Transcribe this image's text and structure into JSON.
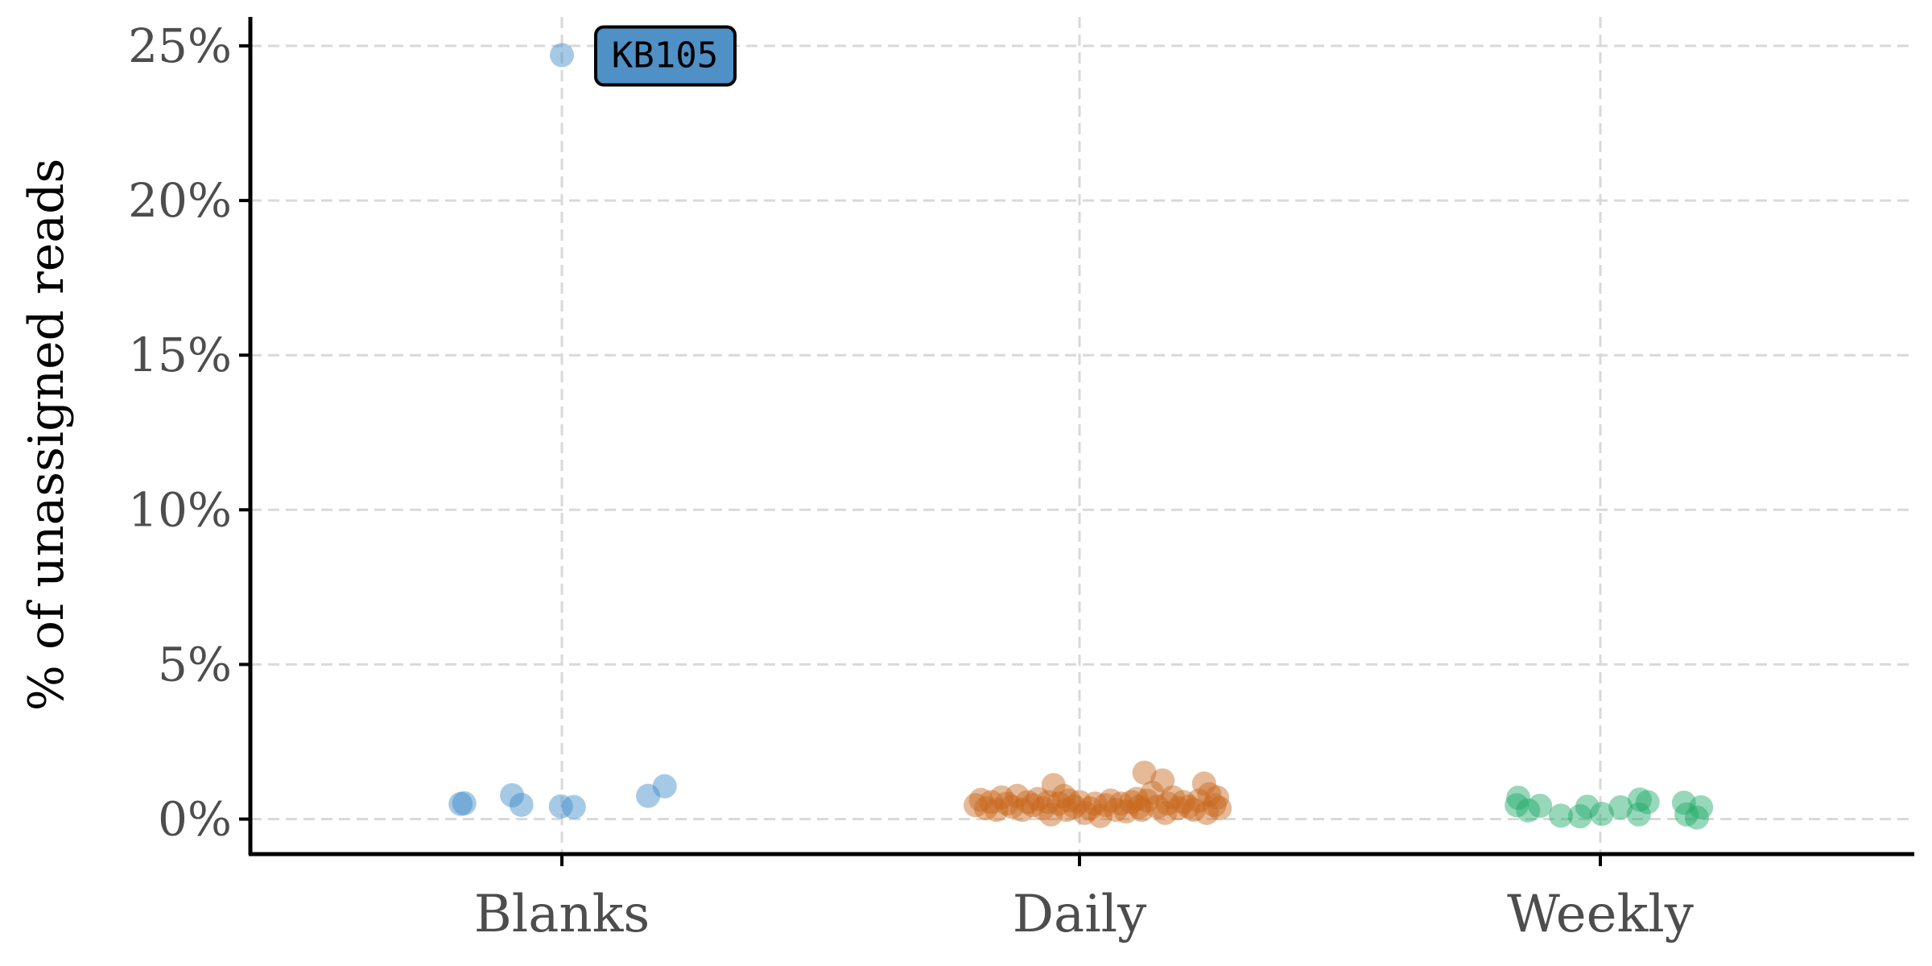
{
  "chart_data": {
    "type": "scatter",
    "title": "",
    "xlabel": "",
    "ylabel": "% of unassigned reads",
    "ylim": [
      -1.1,
      26.5
    ],
    "yticks": [
      0,
      5,
      10,
      15,
      20,
      25
    ],
    "ytick_labels": [
      "0%",
      "5%",
      "10%",
      "15%",
      "20%",
      "25%"
    ],
    "categories": [
      "Blanks",
      "Daily",
      "Weekly"
    ],
    "grid": true,
    "legend": "none",
    "jitter_note_unit": "x offsets are fractions of category spacing",
    "series": [
      {
        "category": "Blanks",
        "color": "#3a87c8",
        "points": [
          [
            -0.195,
            0.49
          ],
          [
            -0.188,
            0.51
          ],
          [
            -0.096,
            0.77
          ],
          [
            -0.078,
            0.46
          ],
          [
            -0.002,
            0.41
          ],
          [
            0.023,
            0.39
          ],
          [
            0.166,
            0.75
          ],
          [
            0.198,
            1.06
          ],
          [
            0.0,
            24.7
          ]
        ]
      },
      {
        "category": "Daily",
        "color": "#c8651b",
        "points": [
          [
            -0.2,
            0.45
          ],
          [
            -0.19,
            0.62
          ],
          [
            -0.18,
            0.35
          ],
          [
            -0.17,
            0.55
          ],
          [
            -0.16,
            0.3
          ],
          [
            -0.15,
            0.7
          ],
          [
            -0.14,
            0.5
          ],
          [
            -0.13,
            0.4
          ],
          [
            -0.12,
            0.75
          ],
          [
            -0.11,
            0.3
          ],
          [
            -0.1,
            0.55
          ],
          [
            -0.09,
            0.45
          ],
          [
            -0.08,
            0.65
          ],
          [
            -0.07,
            0.35
          ],
          [
            -0.06,
            0.55
          ],
          [
            -0.055,
            0.15
          ],
          [
            -0.05,
            1.1
          ],
          [
            -0.04,
            0.5
          ],
          [
            -0.03,
            0.75
          ],
          [
            -0.025,
            0.3
          ],
          [
            -0.02,
            0.6
          ],
          [
            -0.01,
            0.4
          ],
          [
            0.0,
            0.55
          ],
          [
            0.01,
            0.2
          ],
          [
            0.02,
            0.35
          ],
          [
            0.03,
            0.5
          ],
          [
            0.04,
            0.1
          ],
          [
            0.05,
            0.45
          ],
          [
            0.06,
            0.6
          ],
          [
            0.07,
            0.3
          ],
          [
            0.08,
            0.5
          ],
          [
            0.09,
            0.25
          ],
          [
            0.1,
            0.55
          ],
          [
            0.11,
            0.65
          ],
          [
            0.115,
            0.4
          ],
          [
            0.12,
            0.3
          ],
          [
            0.125,
            1.5
          ],
          [
            0.13,
            0.6
          ],
          [
            0.14,
            0.85
          ],
          [
            0.15,
            0.4
          ],
          [
            0.16,
            1.25
          ],
          [
            0.165,
            0.2
          ],
          [
            0.17,
            0.5
          ],
          [
            0.18,
            0.7
          ],
          [
            0.19,
            0.35
          ],
          [
            0.2,
            0.55
          ],
          [
            0.21,
            0.4
          ],
          [
            0.22,
            0.3
          ],
          [
            0.23,
            0.6
          ],
          [
            0.24,
            1.15
          ],
          [
            0.245,
            0.2
          ],
          [
            0.25,
            0.8
          ],
          [
            0.26,
            0.45
          ],
          [
            0.265,
            0.7
          ],
          [
            0.27,
            0.35
          ]
        ]
      },
      {
        "category": "Weekly",
        "color": "#1aa865",
        "points": [
          [
            -0.158,
            0.69
          ],
          [
            -0.161,
            0.45
          ],
          [
            -0.139,
            0.28
          ],
          [
            -0.116,
            0.43
          ],
          [
            -0.076,
            0.11
          ],
          [
            -0.039,
            0.09
          ],
          [
            -0.025,
            0.4
          ],
          [
            0.003,
            0.17
          ],
          [
            0.039,
            0.38
          ],
          [
            0.074,
            0.15
          ],
          [
            0.076,
            0.63
          ],
          [
            0.091,
            0.55
          ],
          [
            0.161,
            0.53
          ],
          [
            0.166,
            0.15
          ],
          [
            0.194,
            0.38
          ],
          [
            0.186,
            0.05
          ]
        ]
      }
    ],
    "annotations": [
      {
        "text": "KB105",
        "category": "Blanks",
        "y": 24.7,
        "fill": "#4f90c6"
      }
    ]
  }
}
